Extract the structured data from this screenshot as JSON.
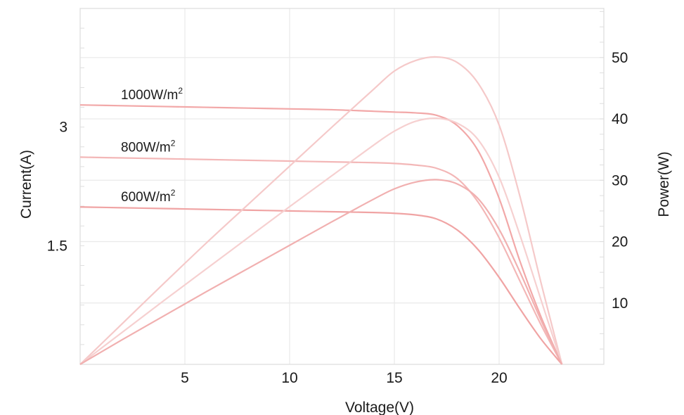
{
  "chart_data": {
    "type": "line",
    "xlabel": "Voltage(V)",
    "ylabel_left": "Current(A)",
    "ylabel_right": "Power(W)",
    "xlim": [
      0,
      25
    ],
    "ylim_left": [
      0,
      4.5
    ],
    "ylim_right": [
      0,
      58
    ],
    "x_ticks": [
      5,
      10,
      15,
      20
    ],
    "y_left_ticks": [
      1.5,
      3
    ],
    "y_right_ticks": [
      10,
      20,
      30,
      40,
      50
    ],
    "grid": true,
    "series": [
      {
        "name": "1000W/m",
        "name_sup": "2",
        "axis": "left",
        "color": "#f2a8a8",
        "x": [
          0,
          2,
          4,
          6,
          8,
          10,
          12,
          14,
          15,
          16,
          17,
          18,
          19,
          20,
          21,
          22,
          23
        ],
        "y": [
          3.28,
          3.27,
          3.26,
          3.25,
          3.24,
          3.23,
          3.22,
          3.2,
          3.19,
          3.18,
          3.15,
          3.02,
          2.7,
          2.1,
          1.3,
          0.6,
          0
        ]
      },
      {
        "name": "800W/m",
        "name_sup": "2",
        "axis": "left",
        "color": "#f3b7b7",
        "x": [
          0,
          2,
          4,
          6,
          8,
          10,
          12,
          14,
          15,
          16,
          17,
          18,
          19,
          20,
          21,
          22,
          23
        ],
        "y": [
          2.62,
          2.61,
          2.6,
          2.59,
          2.58,
          2.57,
          2.56,
          2.55,
          2.54,
          2.52,
          2.48,
          2.35,
          2.05,
          1.6,
          1.05,
          0.5,
          0
        ]
      },
      {
        "name": "600W/m",
        "name_sup": "2",
        "axis": "left",
        "color": "#f0a4a4",
        "x": [
          0,
          2,
          4,
          6,
          8,
          10,
          12,
          14,
          15,
          16,
          17,
          18,
          19,
          20,
          21,
          22,
          23
        ],
        "y": [
          1.99,
          1.98,
          1.97,
          1.96,
          1.95,
          1.94,
          1.93,
          1.92,
          1.91,
          1.89,
          1.84,
          1.7,
          1.45,
          1.1,
          0.7,
          0.32,
          0
        ]
      },
      {
        "axis": "right",
        "color": "#f5c9c9",
        "x": [
          0,
          2,
          4,
          6,
          8,
          10,
          12,
          14,
          15,
          16,
          17,
          18,
          19,
          20,
          21,
          22,
          23
        ],
        "y": [
          0,
          6.6,
          13.2,
          19.7,
          26.0,
          32.3,
          38.6,
          44.8,
          47.8,
          49.5,
          50.1,
          49.2,
          45.8,
          39.0,
          27.3,
          13.3,
          0
        ]
      },
      {
        "axis": "right",
        "color": "#f6d0d0",
        "x": [
          0,
          2,
          4,
          6,
          8,
          10,
          12,
          14,
          15,
          16,
          17,
          18,
          19,
          20,
          21,
          22,
          23
        ],
        "y": [
          0,
          5.2,
          10.4,
          15.5,
          20.6,
          25.7,
          30.7,
          35.7,
          38.0,
          39.6,
          40.1,
          39.3,
          36.6,
          30.5,
          21.0,
          10.5,
          0
        ]
      },
      {
        "axis": "right",
        "color": "#f1b0b0",
        "x": [
          0,
          2,
          4,
          6,
          8,
          10,
          12,
          14,
          15,
          16,
          17,
          18,
          19,
          20,
          21,
          22,
          23
        ],
        "y": [
          0,
          4.0,
          7.9,
          11.8,
          15.6,
          19.4,
          23.2,
          26.9,
          28.6,
          29.7,
          30.1,
          29.4,
          27.0,
          22.0,
          15.0,
          7.2,
          0
        ]
      }
    ]
  }
}
